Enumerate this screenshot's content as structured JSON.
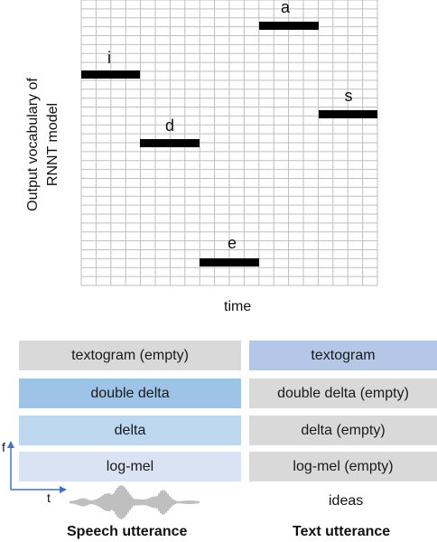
{
  "diagram": {
    "ylabel_line1": "Output vocabulary of",
    "ylabel_line2": "RNNT model",
    "xlabel": "time",
    "tokens": [
      {
        "label": "i"
      },
      {
        "label": "d"
      },
      {
        "label": "e"
      },
      {
        "label": "a"
      },
      {
        "label": "s"
      }
    ]
  },
  "speech_stack": {
    "rows": [
      "textogram (empty)",
      "double delta",
      "delta",
      "log-mel"
    ],
    "caption": "Speech utterance"
  },
  "text_stack": {
    "rows": [
      "textogram",
      "double delta (empty)",
      "delta (empty)",
      "log-mel (empty)"
    ],
    "caption": "Text utterance",
    "input_text": "ideas"
  },
  "axes_icon": {
    "f_label": "f",
    "t_label": "t"
  },
  "colors": {
    "gray_box": "#d9d9d9",
    "log_mel": "#dae3f3",
    "delta": "#bdd7ee",
    "double_delta": "#9dc3e6",
    "textogram": "#b4c7e7",
    "axis_blue": "#4472c4",
    "segment": "#000000"
  }
}
